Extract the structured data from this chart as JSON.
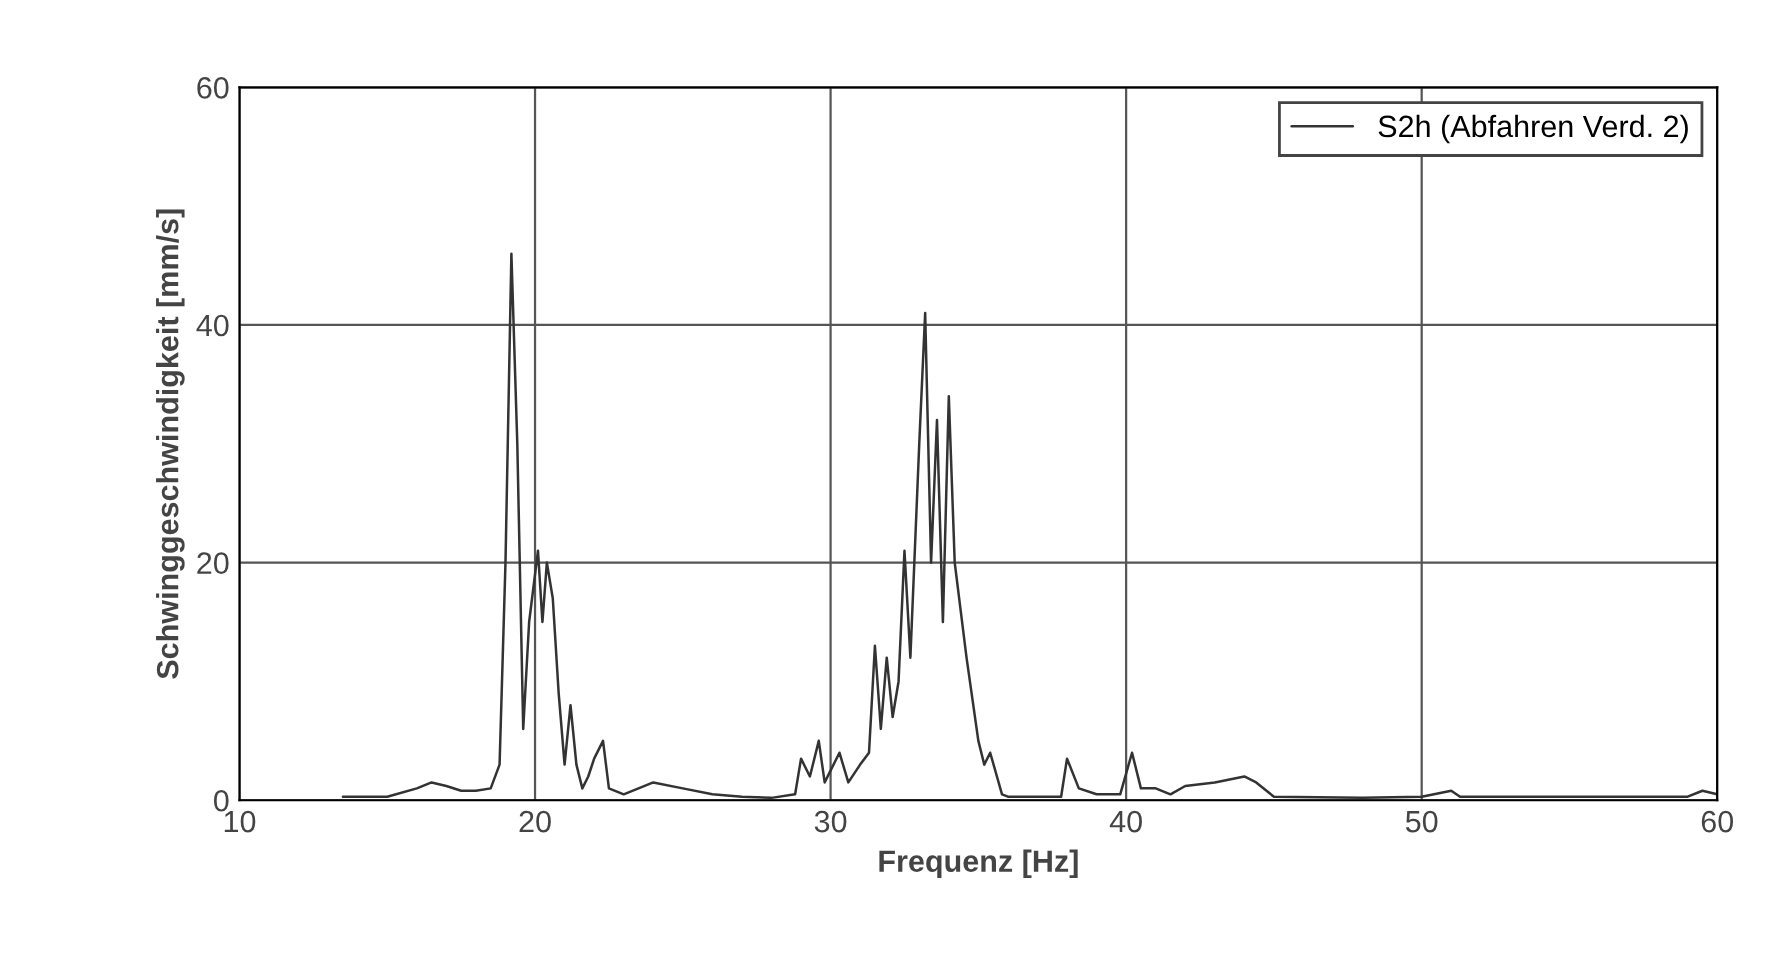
{
  "chart_data": {
    "type": "line",
    "xlabel": "Frequenz [Hz]",
    "ylabel": "Schwinggeschwindigkeit [mm/s]",
    "xlim": [
      10,
      60
    ],
    "xticks": [
      10,
      20,
      30,
      40,
      50,
      60
    ],
    "ylim": [
      0,
      60
    ],
    "yticks": [
      0,
      20,
      40,
      60
    ],
    "grid": true,
    "legend": "top right",
    "series": [
      {
        "name": "S2h (Abfahren Verd. 2)",
        "color": "#333333",
        "x": [
          13.5,
          15,
          16,
          16.5,
          17,
          17.5,
          18,
          18.5,
          18.8,
          19.0,
          19.2,
          19.4,
          19.6,
          19.8,
          20.1,
          20.25,
          20.4,
          20.6,
          20.8,
          21.0,
          21.2,
          21.4,
          21.6,
          21.8,
          22.0,
          22.3,
          22.5,
          23,
          23.5,
          24,
          25,
          26,
          27,
          28,
          28.8,
          29.0,
          29.3,
          29.6,
          29.8,
          30.3,
          30.6,
          31,
          31.3,
          31.5,
          31.7,
          31.9,
          32.1,
          32.3,
          32.5,
          32.7,
          33.0,
          33.2,
          33.4,
          33.6,
          33.8,
          34.0,
          34.2,
          34.6,
          35,
          35.2,
          35.4,
          35.8,
          36,
          37,
          37.8,
          38.0,
          38.4,
          39,
          39.8,
          40.2,
          40.5,
          41,
          41.5,
          42,
          43,
          44,
          44.4,
          45,
          48,
          50,
          51,
          51.3,
          55,
          59,
          59.5,
          60
        ],
        "values": [
          0.3,
          0.3,
          1.0,
          1.5,
          1.2,
          0.8,
          0.8,
          1.0,
          3,
          20,
          46,
          30,
          6,
          15,
          21,
          15,
          20,
          17,
          9,
          3,
          8,
          3,
          1,
          2,
          3.5,
          5,
          1,
          0.5,
          1,
          1.5,
          1,
          0.5,
          0.3,
          0.2,
          0.5,
          3.5,
          2,
          5,
          1.5,
          4,
          1.5,
          3,
          4,
          13,
          6,
          12,
          7,
          10,
          21,
          12,
          30,
          41,
          20,
          32,
          15,
          34,
          20,
          12,
          5,
          3,
          4,
          0.5,
          0.3,
          0.3,
          0.3,
          3.5,
          1,
          0.5,
          0.5,
          4,
          1,
          1,
          0.5,
          1.2,
          1.5,
          2,
          1.5,
          0.3,
          0.2,
          0.3,
          0.8,
          0.3,
          0.3,
          0.3,
          0.8,
          0.5
        ]
      }
    ]
  }
}
